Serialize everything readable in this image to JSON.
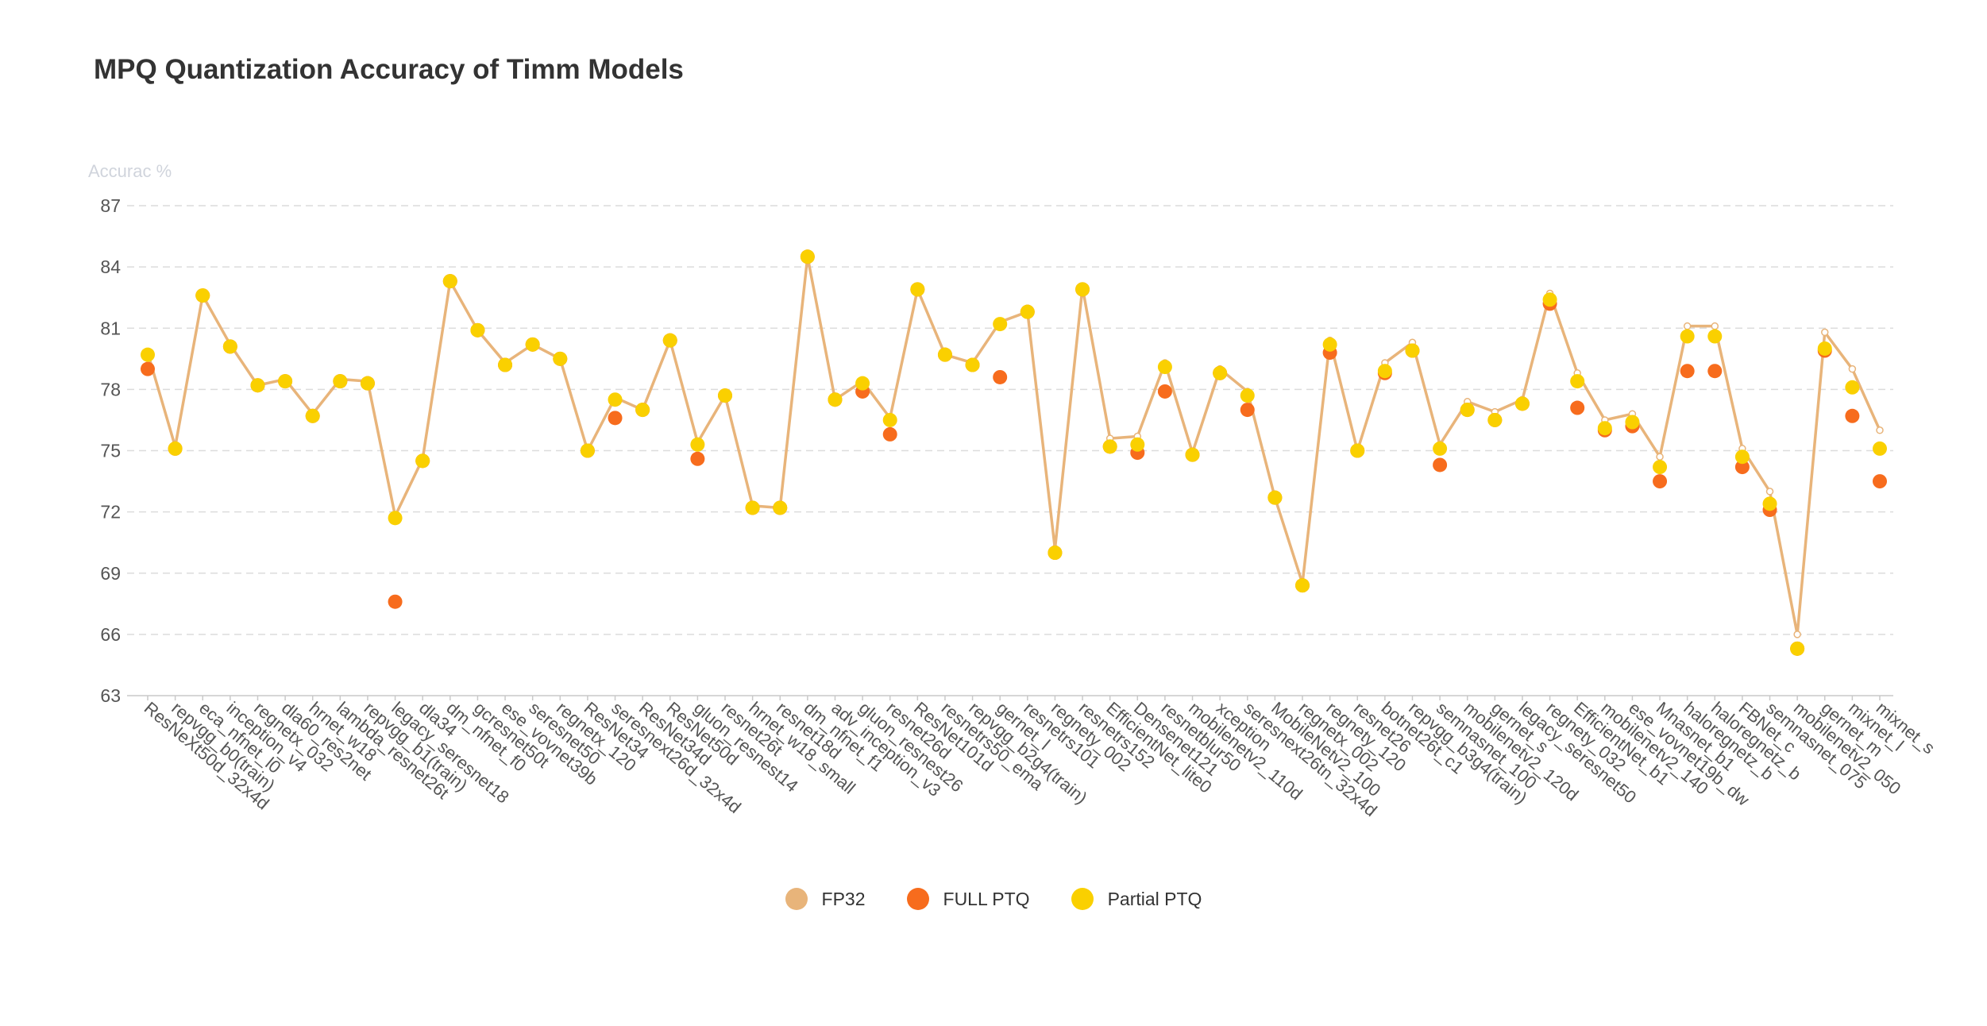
{
  "chart_data": {
    "type": "line",
    "title": "MPQ Quantization Accuracy of Timm Models",
    "ylabel": "Accurac %",
    "xlabel": "",
    "ylim": [
      63,
      87
    ],
    "yticks": [
      63,
      66,
      69,
      72,
      75,
      78,
      81,
      84,
      87
    ],
    "grid": true,
    "legend_position": "bottom-center",
    "categories": [
      "ResNeXt50d_32x4d",
      "repvgg_b0(train)",
      "eca_nfnet_l0",
      "inception_v4",
      "regnetx_032",
      "dla60_res2net",
      "hrnet_w18",
      "lambda_resnet26t",
      "repvgg_b1(train)",
      "legacy_seresnet18",
      "dla34",
      "dm_nfnet_f0",
      "gcresnet50t",
      "ese_vovnet39b",
      "seresnet50",
      "regnetx_120",
      "ResNet34",
      "seresnext26d_32x4d",
      "ResNet34d",
      "ResNet50d",
      "gluon_resnest14",
      "resnet26t",
      "hrnet_w18_small",
      "resnet18d",
      "dm_nfnet_f1",
      "adv_inception_v3",
      "gluon_resnest26",
      "resnet26d",
      "ResNet101d",
      "resnetrs50_ema",
      "repvgg_b2g4(train)",
      "gernet_l",
      "resnetrs101",
      "regnety_002",
      "resnetrs152",
      "EfficientNet_lite0",
      "Densenet121",
      "resnetblur50",
      "mobilenetv2_110d",
      "xception",
      "seresnext26tn_32x4d",
      "MobileNetv2_100",
      "regnetx_002",
      "regnety_120",
      "resnet26",
      "botnet26t_c1",
      "repvgg_b3g4(train)",
      "semnasnet_100",
      "mobilenetv2_120d",
      "gernet_s",
      "legacy_seresnet50",
      "regnety_032",
      "EfficientNet_b1",
      "mobilenetv2_140",
      "ese_vovnet19b_dw",
      "Mnasnet_b1",
      "haloregnetz_b",
      "haloregnetz_b",
      "FBNet_c",
      "semnasnet_075",
      "mobilenetv2_050",
      "gernet_m",
      "mixnet_l",
      "mixnet_s"
    ],
    "series": [
      {
        "name": "FP32",
        "color": "#e8b47a",
        "values": [
          79.8,
          75.2,
          82.6,
          80.2,
          78.2,
          78.5,
          76.8,
          78.5,
          78.4,
          71.8,
          74.6,
          83.3,
          80.9,
          79.3,
          80.2,
          79.5,
          75.0,
          77.6,
          77.0,
          80.4,
          75.4,
          77.7,
          72.3,
          72.2,
          84.5,
          77.5,
          78.4,
          76.6,
          82.9,
          79.7,
          79.3,
          81.3,
          81.8,
          70.2,
          83.0,
          75.6,
          75.7,
          79.3,
          74.9,
          79.0,
          77.9,
          72.7,
          68.5,
          80.4,
          75.0,
          79.3,
          80.3,
          75.3,
          77.4,
          76.9,
          77.5,
          82.7,
          78.8,
          76.5,
          76.8,
          74.7,
          81.1,
          81.1,
          75.1,
          73.0,
          66.0,
          80.8,
          79.0,
          76.0
        ]
      },
      {
        "name": "FULL PTQ",
        "color": "#f76c1d",
        "values": [
          79.0,
          75.1,
          82.6,
          80.1,
          78.2,
          78.4,
          76.7,
          78.4,
          78.3,
          67.6,
          74.5,
          83.3,
          80.9,
          79.2,
          80.2,
          79.5,
          75.0,
          76.6,
          77.0,
          80.4,
          74.6,
          77.7,
          72.2,
          72.2,
          84.5,
          77.5,
          77.9,
          75.8,
          82.9,
          79.7,
          79.2,
          78.6,
          81.8,
          70.0,
          82.9,
          75.2,
          74.9,
          77.9,
          74.8,
          78.8,
          77.0,
          72.7,
          68.4,
          79.8,
          75.0,
          78.8,
          79.9,
          74.3,
          77.0,
          76.5,
          77.3,
          82.2,
          77.1,
          76.0,
          76.2,
          73.5,
          78.9,
          78.9,
          74.2,
          72.1,
          65.3,
          79.9,
          76.7,
          73.5
        ]
      },
      {
        "name": "Partial PTQ",
        "color": "#fad000",
        "values": [
          79.7,
          75.1,
          82.6,
          80.1,
          78.2,
          78.4,
          76.7,
          78.4,
          78.3,
          71.7,
          74.5,
          83.3,
          80.9,
          79.2,
          80.2,
          79.5,
          75.0,
          77.5,
          77.0,
          80.4,
          75.3,
          77.7,
          72.2,
          72.2,
          84.5,
          77.5,
          78.3,
          76.5,
          82.9,
          79.7,
          79.2,
          81.2,
          81.8,
          70.0,
          82.9,
          75.2,
          75.3,
          79.1,
          74.8,
          78.8,
          77.7,
          72.7,
          68.4,
          80.2,
          75.0,
          78.9,
          79.9,
          75.1,
          77.0,
          76.5,
          77.3,
          82.4,
          78.4,
          76.1,
          76.4,
          74.2,
          80.6,
          80.6,
          74.7,
          72.4,
          65.3,
          80.0,
          78.1,
          75.1
        ]
      }
    ]
  }
}
